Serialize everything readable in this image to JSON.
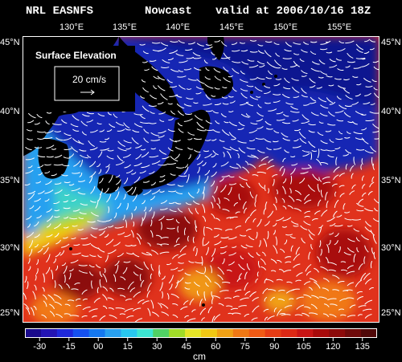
{
  "header": {
    "model": "NRL EASNFS",
    "product": "Nowcast",
    "valid": "valid at 2006/10/16 18Z"
  },
  "map": {
    "lon_labels": [
      "130°E",
      "135°E",
      "140°E",
      "145°E",
      "150°E",
      "155°E"
    ],
    "lat_labels": [
      "45°N",
      "40°N",
      "35°N",
      "30°N",
      "25°N"
    ],
    "legend_title": "Surface Elevation",
    "vector_scale_label": "20 cm/s"
  },
  "colorbar": {
    "ticks": [
      "-30",
      "-15",
      "00",
      "15",
      "30",
      "45",
      "60",
      "75",
      "90",
      "105",
      "120",
      "135"
    ],
    "units": "cm",
    "colors": [
      "#1a0a8c",
      "#2314b4",
      "#1e28dc",
      "#1450f0",
      "#1478f0",
      "#28a0f0",
      "#28c8f0",
      "#3ce6d2",
      "#50d264",
      "#a0dc28",
      "#e6e628",
      "#f0c814",
      "#f0a014",
      "#f07814",
      "#f05a14",
      "#e63c14",
      "#dc2814",
      "#c81414",
      "#a80a0a",
      "#8c0a0a",
      "#6e0a0a",
      "#500808"
    ],
    "range": [
      -37.5,
      142.5
    ]
  }
}
